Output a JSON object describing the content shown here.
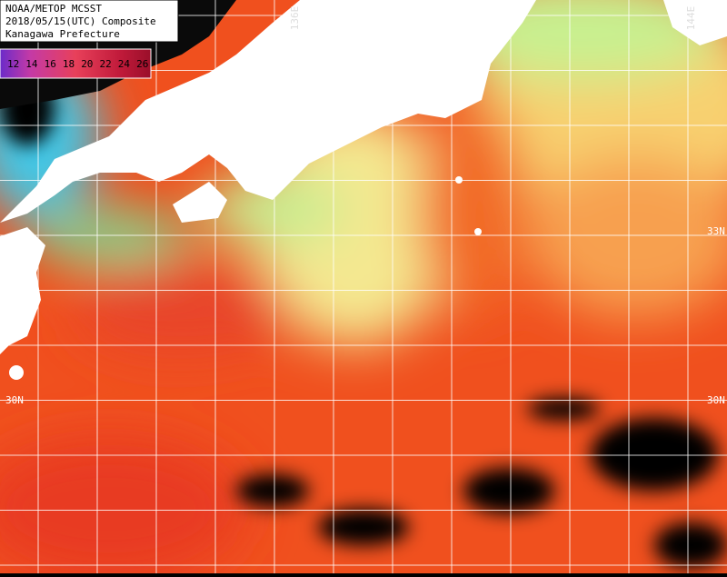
{
  "header": {
    "lines": [
      "NOAA/METOP MCSST",
      "2018/05/15(UTC) Composite",
      "Kanagawa Prefecture"
    ]
  },
  "legend": {
    "labels": [
      "12",
      "14",
      "16",
      "18",
      "20",
      "22",
      "24",
      "26"
    ]
  },
  "grid_labels": {
    "longitude": [
      "136E",
      "144E"
    ],
    "latitude": [
      "33N",
      "30N",
      "30N"
    ]
  }
}
